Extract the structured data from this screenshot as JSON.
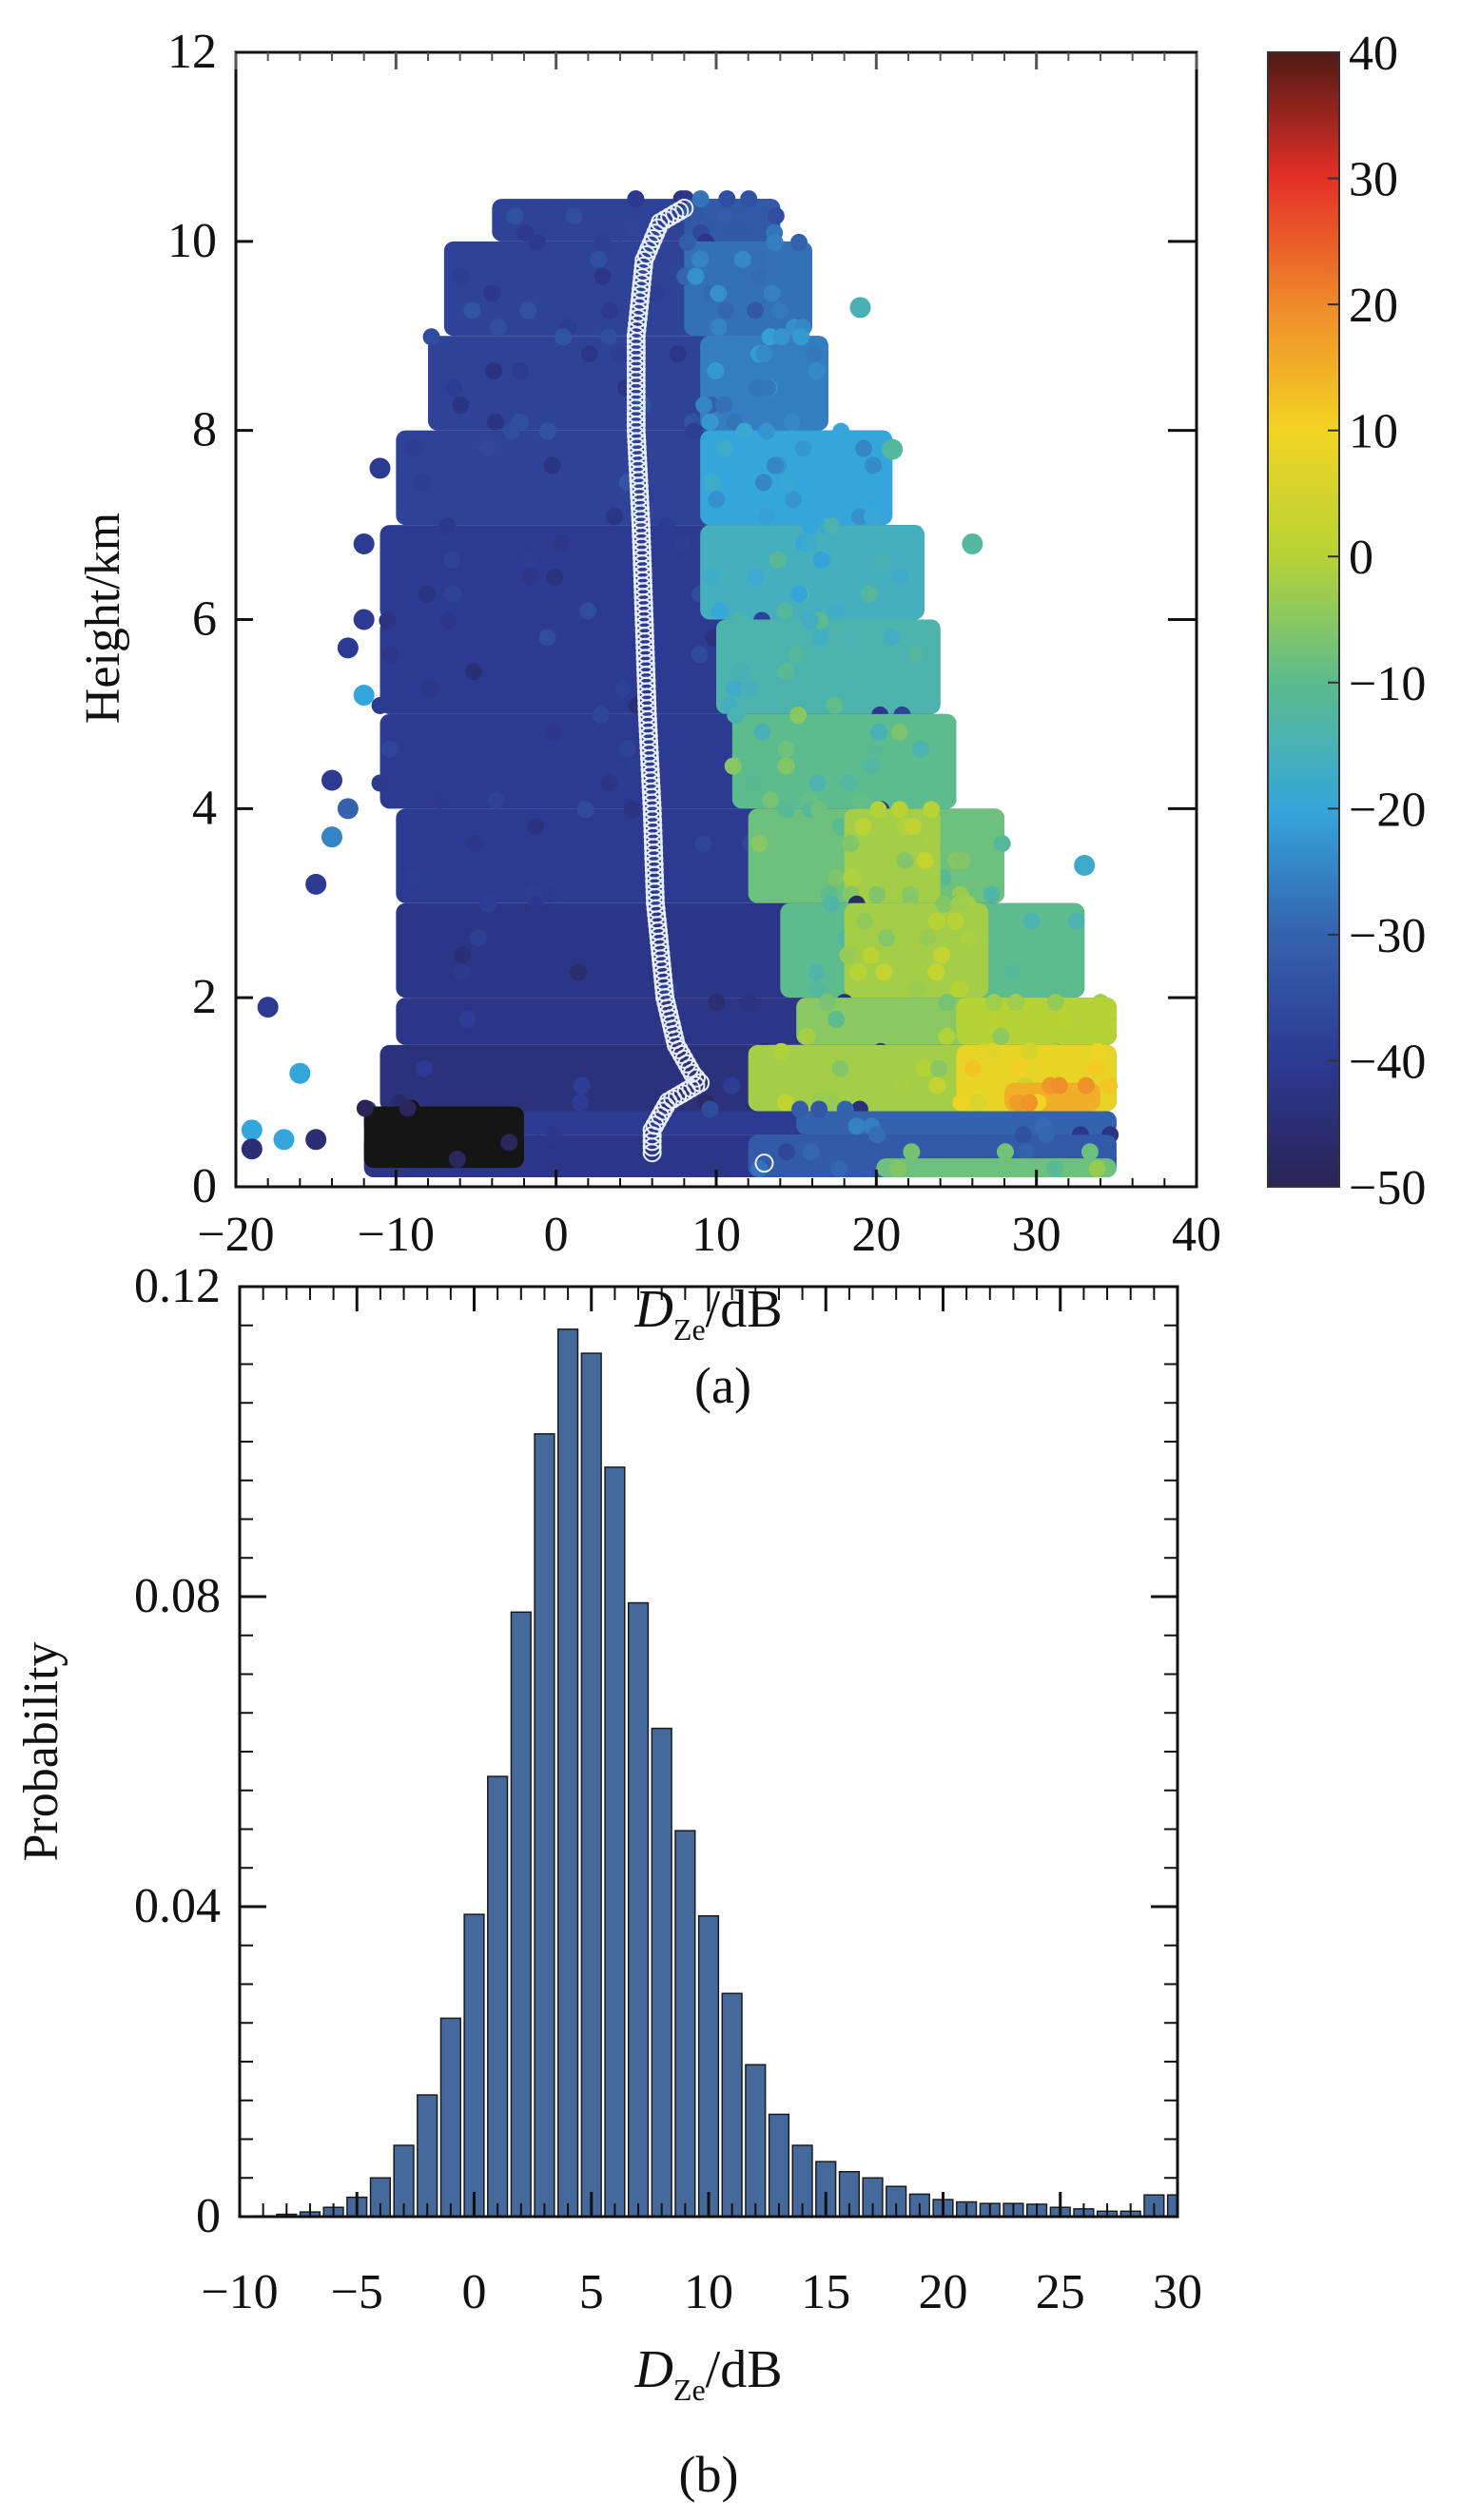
{
  "chart_data": [
    {
      "type": "heatmap",
      "panel_label": "(a)",
      "xlabel_main": "D",
      "xlabel_sub": "Ze",
      "xlabel_unit": "/dB",
      "ylabel": "Height/km",
      "xlim": [
        -20,
        40
      ],
      "ylim": [
        0,
        12
      ],
      "xticks": [
        "−20",
        "−10",
        "0",
        "10",
        "20",
        "30",
        "40"
      ],
      "xtick_values": [
        -20,
        -10,
        0,
        10,
        20,
        30,
        40
      ],
      "yticks": [
        "0",
        "2",
        "4",
        "6",
        "8",
        "10",
        "12"
      ],
      "ytick_values": [
        0,
        2,
        4,
        6,
        8,
        10,
        12
      ],
      "colorbar": {
        "range": [
          -50,
          40
        ],
        "ticks": [
          "40",
          "30",
          "20",
          "10",
          "0",
          "−10",
          "−20",
          "−30",
          "−40",
          "−50"
        ],
        "tick_values": [
          40,
          30,
          20,
          10,
          0,
          -10,
          -20,
          -30,
          -40,
          -50
        ],
        "stops": [
          {
            "v": -50,
            "c": "#2a2456"
          },
          {
            "v": -40,
            "c": "#2c3a92"
          },
          {
            "v": -30,
            "c": "#3462ad"
          },
          {
            "v": -20,
            "c": "#35a6dc"
          },
          {
            "v": -10,
            "c": "#5cbc8e"
          },
          {
            "v": 0,
            "c": "#b6d336"
          },
          {
            "v": 10,
            "c": "#f3d423"
          },
          {
            "v": 20,
            "c": "#ef8a2b"
          },
          {
            "v": 30,
            "c": "#e43026"
          },
          {
            "v": 40,
            "c": "#4f1a16"
          }
        ]
      },
      "segments_note_fields": [
        "h0",
        "h1",
        "x0",
        "x1",
        "value"
      ],
      "segments": [
        [
          10.0,
          10.45,
          -4,
          14,
          -38
        ],
        [
          10.0,
          10.45,
          8,
          14,
          -32
        ],
        [
          9.0,
          10.0,
          -7,
          15,
          -38
        ],
        [
          9.0,
          10.0,
          8,
          16,
          -28
        ],
        [
          8.0,
          9.0,
          -8,
          17,
          -38
        ],
        [
          8.0,
          9.0,
          9,
          17,
          -26
        ],
        [
          7.0,
          8.0,
          -10,
          21,
          -38
        ],
        [
          7.0,
          8.0,
          9,
          21,
          -20
        ],
        [
          6.0,
          7.0,
          -11,
          23,
          -40
        ],
        [
          6.0,
          7.0,
          9,
          23,
          -16
        ],
        [
          5.0,
          6.0,
          -11,
          24,
          -40
        ],
        [
          5.0,
          6.0,
          10,
          24,
          -14
        ],
        [
          4.0,
          5.0,
          -11,
          25,
          -40
        ],
        [
          4.0,
          5.0,
          11,
          25,
          -10
        ],
        [
          3.0,
          4.0,
          -10,
          28,
          -40
        ],
        [
          3.0,
          4.0,
          12,
          28,
          -8
        ],
        [
          3.0,
          4.0,
          18,
          24,
          -2
        ],
        [
          2.0,
          3.0,
          -10,
          33,
          -42
        ],
        [
          2.0,
          3.0,
          14,
          33,
          -10
        ],
        [
          2.0,
          3.0,
          18,
          27,
          -2
        ],
        [
          1.5,
          2.0,
          -10,
          35,
          -42
        ],
        [
          1.5,
          2.0,
          15,
          35,
          -5
        ],
        [
          1.5,
          2.0,
          25,
          35,
          0
        ],
        [
          0.8,
          1.5,
          -11,
          35,
          -44
        ],
        [
          0.8,
          1.5,
          12,
          35,
          -2
        ],
        [
          0.8,
          1.5,
          25,
          35,
          8
        ],
        [
          0.8,
          1.1,
          28,
          34,
          15
        ],
        [
          0.55,
          0.8,
          -12,
          35,
          -40
        ],
        [
          0.55,
          0.8,
          15,
          35,
          -30
        ],
        [
          0.1,
          0.55,
          -12,
          35,
          -42
        ],
        [
          0.1,
          0.55,
          12,
          35,
          -32
        ],
        [
          0.1,
          0.3,
          20,
          35,
          -8
        ],
        [
          0.2,
          0.85,
          -12,
          -2,
          -52
        ]
      ],
      "scatter_outliers": [
        [
          -19,
          0.6,
          -20
        ],
        [
          -18,
          1.9,
          -40
        ],
        [
          -16,
          1.2,
          -20
        ],
        [
          -15,
          3.2,
          -40
        ],
        [
          -14,
          4.3,
          -40
        ],
        [
          -14,
          3.7,
          -25
        ],
        [
          -13,
          5.7,
          -40
        ],
        [
          -12,
          6.8,
          -40
        ],
        [
          -12,
          6.0,
          -40
        ],
        [
          -13,
          4.0,
          -30
        ],
        [
          -12,
          5.2,
          -20
        ],
        [
          -11,
          7.6,
          -40
        ],
        [
          19,
          9.3,
          -15
        ],
        [
          21,
          7.8,
          -12
        ],
        [
          26,
          6.8,
          -12
        ],
        [
          33,
          3.4,
          -18
        ],
        [
          -19,
          0.4,
          -45
        ],
        [
          -17,
          0.5,
          -20
        ],
        [
          -15,
          0.5,
          -45
        ]
      ],
      "mean_profile": {
        "x": [
          8,
          6.5,
          5.5,
          5,
          5,
          5.3,
          5.5,
          5.7,
          6,
          6.2,
          6.8,
          7.5,
          8.5,
          9,
          7,
          6,
          6,
          13
        ],
        "y": [
          10.35,
          10.2,
          9.8,
          9,
          8,
          7,
          6,
          5,
          4,
          3,
          2,
          1.5,
          1.2,
          1.1,
          0.9,
          0.6,
          0.3,
          0.25
        ]
      }
    },
    {
      "type": "bar",
      "panel_label": "(b)",
      "xlabel_main": "D",
      "xlabel_sub": "Ze",
      "xlabel_unit": "/dB",
      "ylabel": "Probability",
      "xlim": [
        -10,
        30
      ],
      "ylim": [
        0,
        0.12
      ],
      "xticks": [
        "−10",
        "−5",
        "0",
        "5",
        "10",
        "15",
        "20",
        "25",
        "30"
      ],
      "xtick_values": [
        -10,
        -5,
        0,
        5,
        10,
        15,
        20,
        25,
        30
      ],
      "yticks": [
        "0",
        "0.04",
        "0.08",
        "0.12"
      ],
      "ytick_values": [
        0,
        0.04,
        0.08,
        0.12
      ],
      "bar_color": "#46699c",
      "x": [
        -9,
        -8,
        -7,
        -6,
        -5,
        -4,
        -3,
        -2,
        -1,
        0,
        1,
        2,
        3,
        4,
        5,
        6,
        7,
        8,
        9,
        10,
        11,
        12,
        13,
        14,
        15,
        16,
        17,
        18,
        19,
        20,
        21,
        22,
        23,
        24,
        25,
        26,
        27,
        28,
        29,
        30
      ],
      "values": [
        0.0001,
        0.0003,
        0.0006,
        0.0012,
        0.0025,
        0.005,
        0.0092,
        0.0157,
        0.0256,
        0.039,
        0.0568,
        0.078,
        0.101,
        0.1145,
        0.1114,
        0.0967,
        0.0792,
        0.063,
        0.0498,
        0.0388,
        0.0288,
        0.0196,
        0.0132,
        0.0092,
        0.0071,
        0.0058,
        0.005,
        0.0039,
        0.0029,
        0.0022,
        0.0019,
        0.0017,
        0.0017,
        0.0016,
        0.0012,
        0.001,
        0.0007,
        0.0007,
        0.0028,
        0.0028
      ]
    }
  ]
}
